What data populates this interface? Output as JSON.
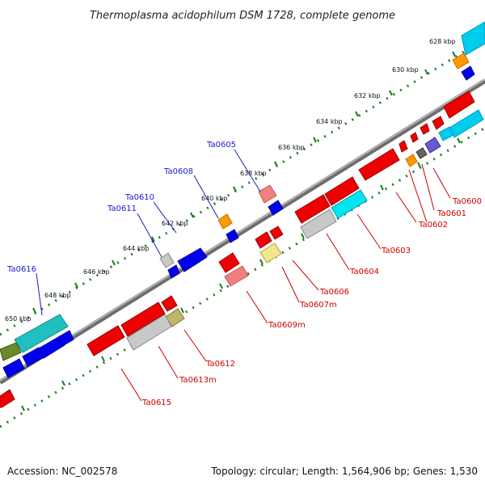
{
  "title": "Thermoplasma acidophilum DSM 1728, complete genome",
  "footer": {
    "accession": "Accession: NC_002578",
    "summary": "Topology: circular; Length: 1,564,906 bp; Genes: 1,530"
  },
  "colors": {
    "forward_label": "#1a1acc",
    "reverse_label": "#cc0000",
    "tick_green": "#1e7d1e",
    "backbone": "#8c8c8c"
  },
  "kbp_ticks": [
    "628 kbp",
    "630 kbp",
    "632 kbp",
    "634 kbp",
    "636 kbp",
    "638 kbp",
    "640 kbp",
    "642 kbp",
    "644 kbp",
    "646 kbp",
    "648 kbp",
    "650 kbp"
  ],
  "forward_labels": [
    "Ta0605",
    "Ta0608",
    "Ta0610",
    "Ta0611",
    "Ta0616"
  ],
  "reverse_labels": [
    "Ta0600",
    "Ta0601",
    "Ta0602",
    "Ta0603",
    "Ta0604",
    "Ta0606",
    "Ta0607m",
    "Ta0609m",
    "Ta0612",
    "Ta0613m",
    "Ta0615"
  ]
}
